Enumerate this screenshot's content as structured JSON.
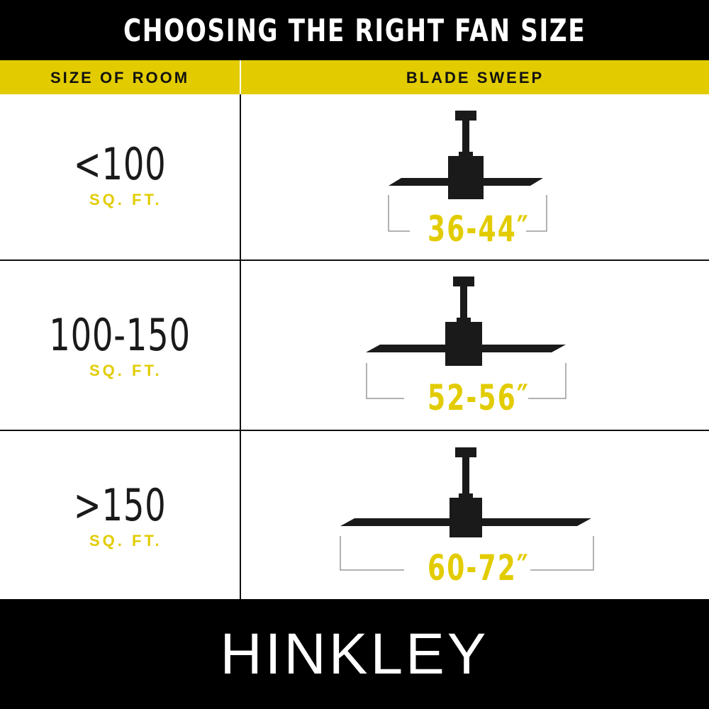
{
  "title": "CHOOSING THE RIGHT FAN SIZE",
  "headers": {
    "room": "SIZE OF ROOM",
    "sweep": "BLADE SWEEP"
  },
  "rows": [
    {
      "room": "<100",
      "unit": "SQ. FT.",
      "sweep": "36-44″"
    },
    {
      "room": "100-150",
      "unit": "SQ. FT.",
      "sweep": "52-56″"
    },
    {
      "room": ">150",
      "unit": "SQ. FT.",
      "sweep": "60-72″"
    }
  ],
  "brand": "HINKLEY",
  "colors": {
    "accent": "#e2cc00",
    "dark": "#1a1a1a"
  }
}
